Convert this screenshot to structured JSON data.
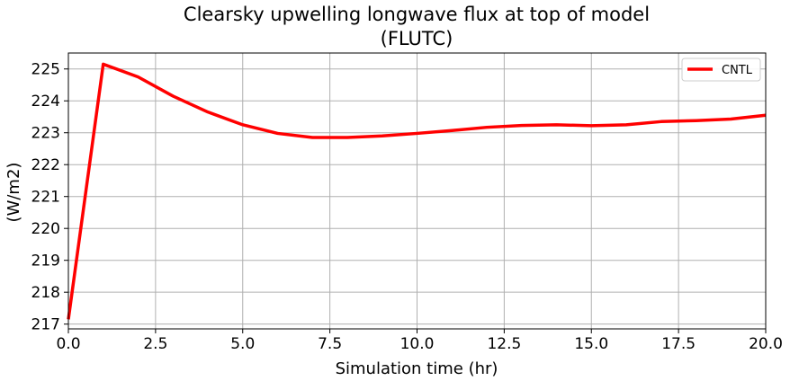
{
  "chart_data": {
    "type": "line",
    "title_line1": "Clearsky upwelling longwave flux at top of model",
    "title_line2": "(FLUTC)",
    "xlabel": "Simulation time (hr)",
    "ylabel": "(W/m2)",
    "xlim": [
      0,
      20
    ],
    "ylim": [
      216.85,
      225.5
    ],
    "grid": true,
    "legend_position": "top-right",
    "x_ticks": [
      "0.0",
      "2.5",
      "5.0",
      "7.5",
      "10.0",
      "12.5",
      "15.0",
      "17.5",
      "20.0"
    ],
    "y_ticks": [
      "217",
      "218",
      "219",
      "220",
      "221",
      "222",
      "223",
      "224",
      "225"
    ],
    "series": [
      {
        "name": "CNTL",
        "color": "#ff0000",
        "x": [
          0,
          1,
          2,
          3,
          4,
          5,
          6,
          7,
          8,
          9,
          10,
          11,
          12,
          13,
          14,
          15,
          16,
          17,
          18,
          19,
          20
        ],
        "y": [
          217.15,
          225.15,
          224.75,
          224.15,
          223.65,
          223.25,
          222.98,
          222.85,
          222.85,
          222.9,
          222.98,
          223.07,
          223.17,
          223.23,
          223.25,
          223.22,
          223.25,
          223.35,
          223.38,
          223.43,
          223.55
        ]
      }
    ]
  }
}
